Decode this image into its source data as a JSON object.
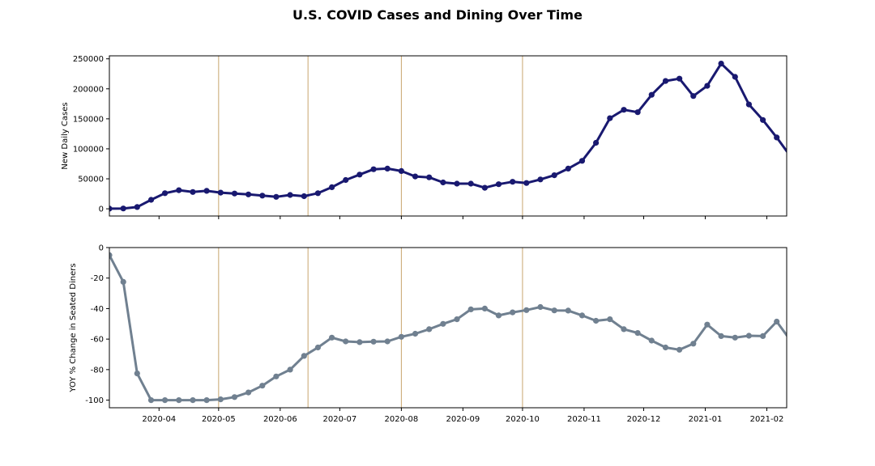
{
  "title": "U.S. COVID Cases and Dining Over Time",
  "colors": {
    "cases_line": "#191970",
    "diners_line": "#708090",
    "event_lines": "#c8a56e"
  },
  "chart_data": [
    {
      "type": "line",
      "x_type": "date",
      "ylabel": "New Daily Cases",
      "ylim": [
        -12000,
        255000
      ],
      "yticks": [
        0,
        50000,
        100000,
        150000,
        200000,
        250000
      ],
      "xlim": [
        "2020-03-07",
        "2021-02-11"
      ],
      "xticks": [
        "2020-04-01",
        "2020-05-01",
        "2020-06-01",
        "2020-07-01",
        "2020-08-01",
        "2020-09-01",
        "2020-10-01",
        "2020-11-01",
        "2020-12-01",
        "2021-01-01",
        "2021-02-01"
      ],
      "show_xtick_labels": false,
      "event_dates": [
        "2020-05-01",
        "2020-06-15",
        "2020-08-01",
        "2020-10-01"
      ],
      "grid": false,
      "series": [
        {
          "x": [
            "2020-03-07",
            "2020-03-14",
            "2020-03-21",
            "2020-03-28",
            "2020-04-04",
            "2020-04-11",
            "2020-04-18",
            "2020-04-25",
            "2020-05-02",
            "2020-05-09",
            "2020-05-16",
            "2020-05-23",
            "2020-05-30",
            "2020-06-06",
            "2020-06-13",
            "2020-06-20",
            "2020-06-27",
            "2020-07-04",
            "2020-07-11",
            "2020-07-18",
            "2020-07-25",
            "2020-08-01",
            "2020-08-08",
            "2020-08-15",
            "2020-08-22",
            "2020-08-29",
            "2020-09-05",
            "2020-09-12",
            "2020-09-19",
            "2020-09-26",
            "2020-10-03",
            "2020-10-10",
            "2020-10-17",
            "2020-10-24",
            "2020-10-31",
            "2020-11-07",
            "2020-11-14",
            "2020-11-21",
            "2020-11-28",
            "2020-12-05",
            "2020-12-12",
            "2020-12-19",
            "2020-12-26",
            "2021-01-02",
            "2021-01-09",
            "2021-01-16",
            "2021-01-23",
            "2021-01-30",
            "2021-02-06",
            "2021-02-13"
          ],
          "values": [
            300,
            500,
            3000,
            15000,
            26000,
            31000,
            28000,
            30000,
            27000,
            25500,
            24000,
            22000,
            20000,
            23000,
            21000,
            26000,
            36000,
            48000,
            57000,
            66000,
            67000,
            63000,
            54000,
            52500,
            44000,
            42000,
            42000,
            35000,
            41000,
            45000,
            43000,
            49000,
            56000,
            67000,
            80000,
            110000,
            151000,
            165000,
            161000,
            190000,
            213000,
            217000,
            188000,
            205000,
            242000,
            220000,
            174000,
            148000,
            119000,
            87000
          ]
        }
      ]
    },
    {
      "type": "line",
      "x_type": "date",
      "ylabel": "YOY % Change in Seated Diners",
      "ylim": [
        -105,
        0
      ],
      "yticks": [
        -100,
        -80,
        -60,
        -40,
        -20,
        0
      ],
      "xlim": [
        "2020-03-07",
        "2021-02-11"
      ],
      "xticks": [
        "2020-04-01",
        "2020-05-01",
        "2020-06-01",
        "2020-07-01",
        "2020-08-01",
        "2020-09-01",
        "2020-10-01",
        "2020-11-01",
        "2020-12-01",
        "2021-01-01",
        "2021-02-01"
      ],
      "xtick_labels": [
        "2020-04",
        "2020-05",
        "2020-06",
        "2020-07",
        "2020-08",
        "2020-09",
        "2020-10",
        "2020-11",
        "2020-12",
        "2021-01",
        "2021-02"
      ],
      "event_dates": [
        "2020-05-01",
        "2020-06-15",
        "2020-08-01",
        "2020-10-01"
      ],
      "grid": false,
      "series": [
        {
          "x": [
            "2020-03-07",
            "2020-03-14",
            "2020-03-21",
            "2020-03-28",
            "2020-04-04",
            "2020-04-11",
            "2020-04-18",
            "2020-04-25",
            "2020-05-02",
            "2020-05-09",
            "2020-05-16",
            "2020-05-23",
            "2020-05-30",
            "2020-06-06",
            "2020-06-13",
            "2020-06-20",
            "2020-06-27",
            "2020-07-04",
            "2020-07-11",
            "2020-07-18",
            "2020-07-25",
            "2020-08-01",
            "2020-08-08",
            "2020-08-15",
            "2020-08-22",
            "2020-08-29",
            "2020-09-05",
            "2020-09-12",
            "2020-09-19",
            "2020-09-26",
            "2020-10-03",
            "2020-10-10",
            "2020-10-17",
            "2020-10-24",
            "2020-10-31",
            "2020-11-07",
            "2020-11-14",
            "2020-11-21",
            "2020-11-28",
            "2020-12-05",
            "2020-12-12",
            "2020-12-19",
            "2020-12-26",
            "2021-01-02",
            "2021-01-09",
            "2021-01-16",
            "2021-01-23",
            "2021-01-30",
            "2021-02-06",
            "2021-02-13"
          ],
          "values": [
            -5,
            -22.5,
            -82.5,
            -100,
            -100,
            -100,
            -100,
            -100,
            -99.5,
            -98,
            -95,
            -90.5,
            -84.5,
            -80,
            -71,
            -65.5,
            -59,
            -61.5,
            -62,
            -61.7,
            -61.5,
            -58.5,
            -56.5,
            -53.5,
            -50,
            -47,
            -40.5,
            -40,
            -44.5,
            -42.5,
            -41,
            -39,
            -41.2,
            -41.3,
            -44.5,
            -48,
            -47,
            -53.5,
            -56,
            -61,
            -65.5,
            -67,
            -63,
            -50.5,
            -58,
            -59,
            -57.8,
            -58,
            -48.5,
            -61
          ]
        }
      ]
    }
  ]
}
